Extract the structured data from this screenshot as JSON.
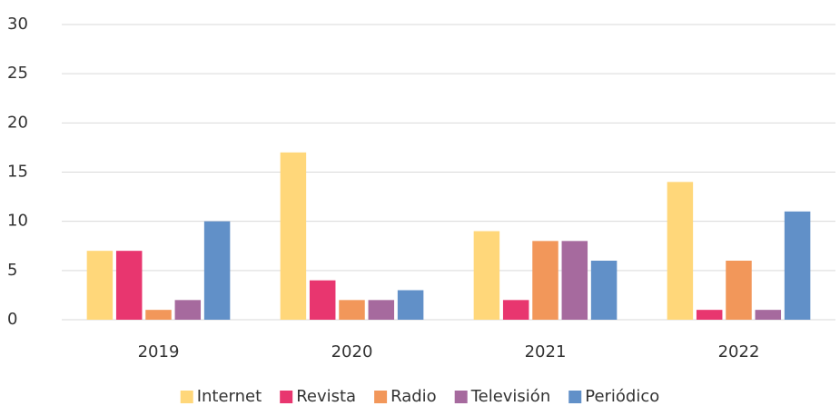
{
  "chart_data": {
    "type": "bar",
    "categories": [
      "2019",
      "2020",
      "2021",
      "2022"
    ],
    "series": [
      {
        "name": "Internet",
        "color": "#FFD77A",
        "values": [
          7,
          17,
          9,
          14
        ]
      },
      {
        "name": "Revista",
        "color": "#E8366F",
        "values": [
          7,
          4,
          2,
          1
        ]
      },
      {
        "name": "Radio",
        "color": "#F2975A",
        "values": [
          1,
          2,
          8,
          6
        ]
      },
      {
        "name": "Televisión",
        "color": "#A66A9E",
        "values": [
          2,
          2,
          8,
          1
        ]
      },
      {
        "name": "Periódico",
        "color": "#6190C8",
        "values": [
          10,
          3,
          6,
          11
        ]
      }
    ],
    "ylim": [
      0,
      30
    ],
    "yticks": [
      0,
      5,
      10,
      15,
      20,
      25,
      30
    ],
    "grid": true,
    "legend": "bottom"
  }
}
